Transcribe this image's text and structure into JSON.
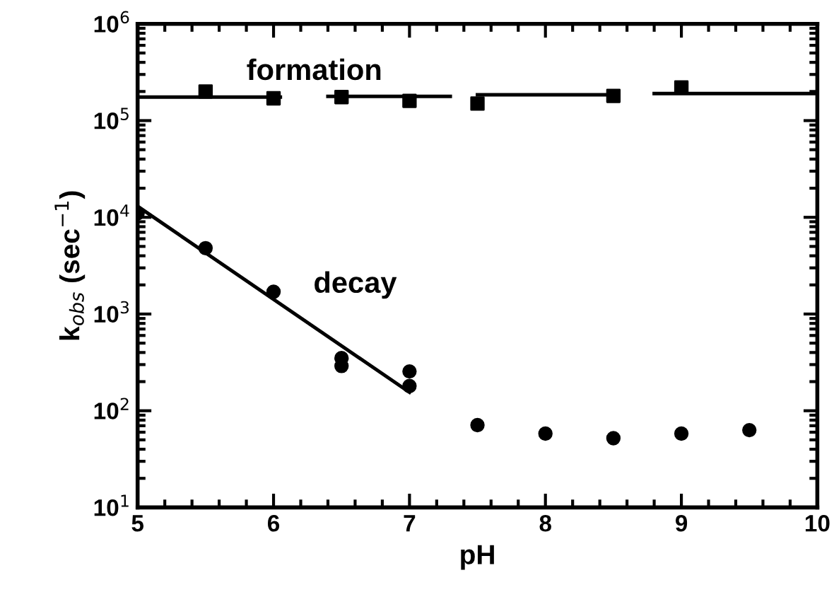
{
  "chart_data": {
    "type": "scatter",
    "xlabel": "pH",
    "ylabel": "k$_{obs}$ (sec$^{−1}$)",
    "xlim": [
      5,
      10
    ],
    "xticks": [
      5,
      6,
      7,
      8,
      9,
      10
    ],
    "ylim": [
      10,
      1000000
    ],
    "log": "y",
    "yticks": [
      {
        "value": 10,
        "label": "10$^{1}$"
      },
      {
        "value": 100,
        "label": "10$^{2}$"
      },
      {
        "value": 1000,
        "label": "10$^{3}$"
      },
      {
        "value": 10000,
        "label": "10$^{4}$"
      },
      {
        "value": 100000,
        "label": "10$^{5}$"
      },
      {
        "value": 1000000,
        "label": "10$^{6}$"
      }
    ],
    "grid": false,
    "legend": false,
    "series": [
      {
        "marker": "square",
        "color": "#000000",
        "x": [
          5.5,
          6,
          6.5,
          7,
          7.5,
          8.5,
          9
        ],
        "values": [
          200000,
          170000,
          175000,
          160000,
          150000,
          180000,
          220000
        ]
      },
      {
        "type": "line",
        "color": "#000000",
        "x": [
          5,
          6.05
        ],
        "values": [
          175000,
          175000
        ]
      },
      {
        "type": "line",
        "color": "#000000",
        "x": [
          6.4,
          7.3
        ],
        "values": [
          178000,
          178000
        ]
      },
      {
        "type": "line",
        "color": "#000000",
        "x": [
          7.5,
          8.5
        ],
        "values": [
          185000,
          185000
        ]
      },
      {
        "type": "line",
        "color": "#000000",
        "x": [
          8.8,
          10
        ],
        "values": [
          190000,
          190000
        ]
      },
      {
        "marker": "circle",
        "color": "#000000",
        "x": [
          5,
          5.5,
          6,
          6.5,
          6.5,
          7,
          7,
          7.5,
          8,
          8.5,
          9,
          9.5
        ],
        "values": [
          11000,
          4800,
          1700,
          350,
          290,
          255,
          180,
          71,
          58,
          52,
          58,
          63
        ]
      },
      {
        "type": "line",
        "color": "#000000",
        "x": [
          5,
          7
        ],
        "values": [
          13000,
          155
        ]
      }
    ],
    "annotations": [
      "formation",
      "decay"
    ]
  }
}
